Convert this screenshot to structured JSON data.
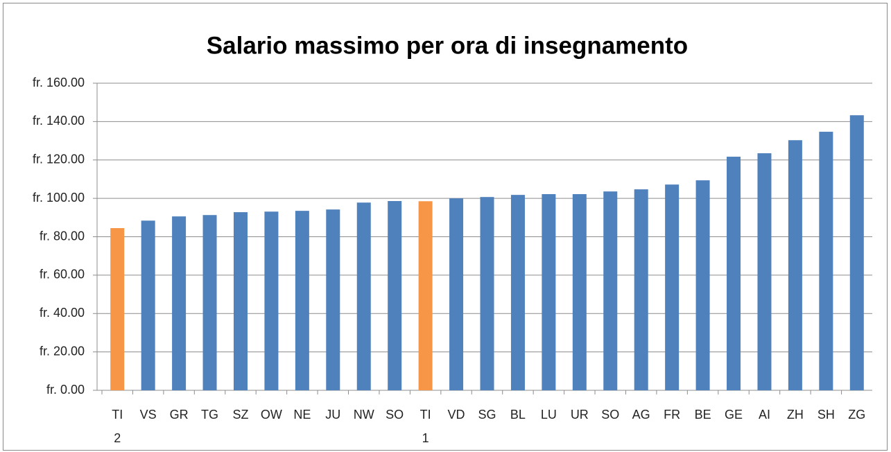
{
  "chart_data": {
    "type": "bar",
    "title": "Salario massimo per ora di insegnamento",
    "categories": [
      "TI 2",
      "VS",
      "GR",
      "TG",
      "SZ",
      "OW",
      "NE",
      "JU",
      "NW",
      "SO",
      "TI 1",
      "VD",
      "SG",
      "BL",
      "LU",
      "UR",
      "SO",
      "AG",
      "FR",
      "BE",
      "GE",
      "AI",
      "ZH",
      "SH",
      "ZG"
    ],
    "values": [
      84.5,
      88.4,
      90.6,
      91.3,
      92.8,
      93.1,
      93.5,
      94.2,
      97.8,
      98.6,
      98.5,
      100,
      100.7,
      101.8,
      102.2,
      102.2,
      103.6,
      104.7,
      107.2,
      109.4,
      121.7,
      123.5,
      130.3,
      134.7,
      143.3
    ],
    "colors": [
      "#f79646",
      "#4f81bd",
      "#4f81bd",
      "#4f81bd",
      "#4f81bd",
      "#4f81bd",
      "#4f81bd",
      "#4f81bd",
      "#4f81bd",
      "#4f81bd",
      "#f79646",
      "#4f81bd",
      "#4f81bd",
      "#4f81bd",
      "#4f81bd",
      "#4f81bd",
      "#4f81bd",
      "#4f81bd",
      "#4f81bd",
      "#4f81bd",
      "#4f81bd",
      "#4f81bd",
      "#4f81bd",
      "#4f81bd",
      "#4f81bd"
    ],
    "ylim": [
      0,
      160
    ],
    "yticks": [
      {
        "value": 0,
        "label": "fr. 0.00"
      },
      {
        "value": 20,
        "label": "fr. 20.00"
      },
      {
        "value": 40,
        "label": "fr. 40.00"
      },
      {
        "value": 60,
        "label": "fr. 60.00"
      },
      {
        "value": 80,
        "label": "fr. 80.00"
      },
      {
        "value": 100,
        "label": "fr. 100.00"
      },
      {
        "value": 120,
        "label": "fr. 120.00"
      },
      {
        "value": 140,
        "label": "fr. 140.00"
      },
      {
        "value": 160,
        "label": "fr. 160.00"
      }
    ],
    "grid": true
  }
}
